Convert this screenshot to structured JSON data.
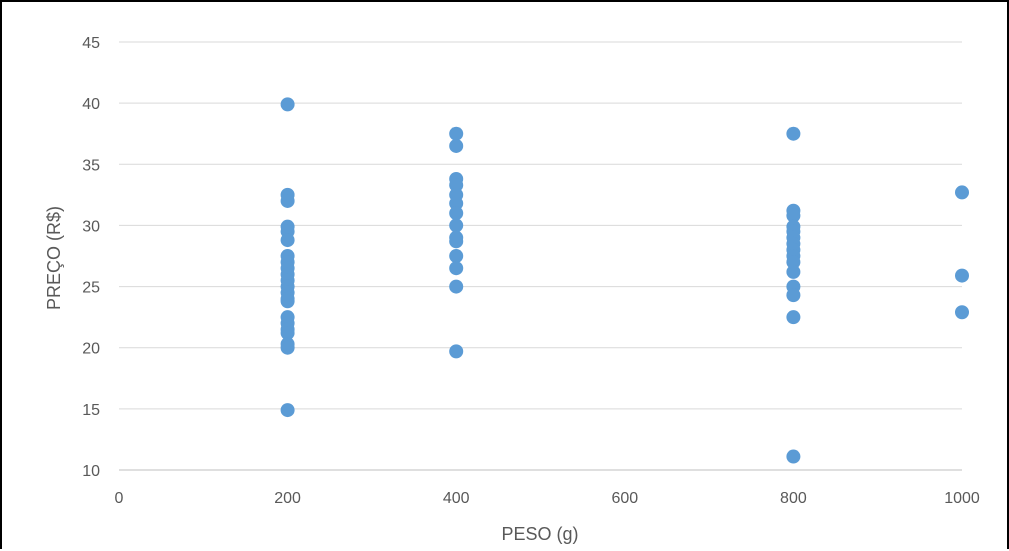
{
  "chart_data": {
    "type": "scatter",
    "xlabel": "PESO (g)",
    "ylabel": "PREÇO (R$)",
    "xlim": [
      0,
      1000
    ],
    "ylim": [
      10,
      45
    ],
    "x_ticks": [
      "0",
      "200",
      "400",
      "600",
      "800",
      "1000"
    ],
    "y_ticks": [
      "10",
      "15",
      "20",
      "25",
      "30",
      "35",
      "40",
      "45"
    ],
    "grid": "horizontal",
    "legend": "none",
    "marker_color": "#5B9BD5",
    "points": [
      {
        "x": 200,
        "y": 39.9
      },
      {
        "x": 200,
        "y": 32.5
      },
      {
        "x": 200,
        "y": 32.0
      },
      {
        "x": 200,
        "y": 29.9
      },
      {
        "x": 200,
        "y": 29.5
      },
      {
        "x": 200,
        "y": 28.8
      },
      {
        "x": 200,
        "y": 27.5
      },
      {
        "x": 200,
        "y": 27.0
      },
      {
        "x": 200,
        "y": 26.5
      },
      {
        "x": 200,
        "y": 26.0
      },
      {
        "x": 200,
        "y": 25.5
      },
      {
        "x": 200,
        "y": 25.0
      },
      {
        "x": 200,
        "y": 24.5
      },
      {
        "x": 200,
        "y": 24.0
      },
      {
        "x": 200,
        "y": 23.8
      },
      {
        "x": 200,
        "y": 22.5
      },
      {
        "x": 200,
        "y": 22.0
      },
      {
        "x": 200,
        "y": 21.5
      },
      {
        "x": 200,
        "y": 21.2
      },
      {
        "x": 200,
        "y": 20.3
      },
      {
        "x": 200,
        "y": 20.0
      },
      {
        "x": 200,
        "y": 14.9
      },
      {
        "x": 400,
        "y": 37.5
      },
      {
        "x": 400,
        "y": 36.5
      },
      {
        "x": 400,
        "y": 33.8
      },
      {
        "x": 400,
        "y": 33.3
      },
      {
        "x": 400,
        "y": 32.5
      },
      {
        "x": 400,
        "y": 31.8
      },
      {
        "x": 400,
        "y": 31.0
      },
      {
        "x": 400,
        "y": 30.0
      },
      {
        "x": 400,
        "y": 29.0
      },
      {
        "x": 400,
        "y": 28.7
      },
      {
        "x": 400,
        "y": 27.5
      },
      {
        "x": 400,
        "y": 26.5
      },
      {
        "x": 400,
        "y": 25.0
      },
      {
        "x": 400,
        "y": 19.7
      },
      {
        "x": 800,
        "y": 37.5
      },
      {
        "x": 800,
        "y": 31.2
      },
      {
        "x": 800,
        "y": 30.8
      },
      {
        "x": 800,
        "y": 29.9
      },
      {
        "x": 800,
        "y": 29.5
      },
      {
        "x": 800,
        "y": 29.0
      },
      {
        "x": 800,
        "y": 28.5
      },
      {
        "x": 800,
        "y": 28.0
      },
      {
        "x": 800,
        "y": 27.5
      },
      {
        "x": 800,
        "y": 27.0
      },
      {
        "x": 800,
        "y": 26.2
      },
      {
        "x": 800,
        "y": 25.0
      },
      {
        "x": 800,
        "y": 24.3
      },
      {
        "x": 800,
        "y": 22.5
      },
      {
        "x": 800,
        "y": 11.1
      },
      {
        "x": 1000,
        "y": 32.7
      },
      {
        "x": 1000,
        "y": 25.9
      },
      {
        "x": 1000,
        "y": 22.9
      }
    ]
  }
}
